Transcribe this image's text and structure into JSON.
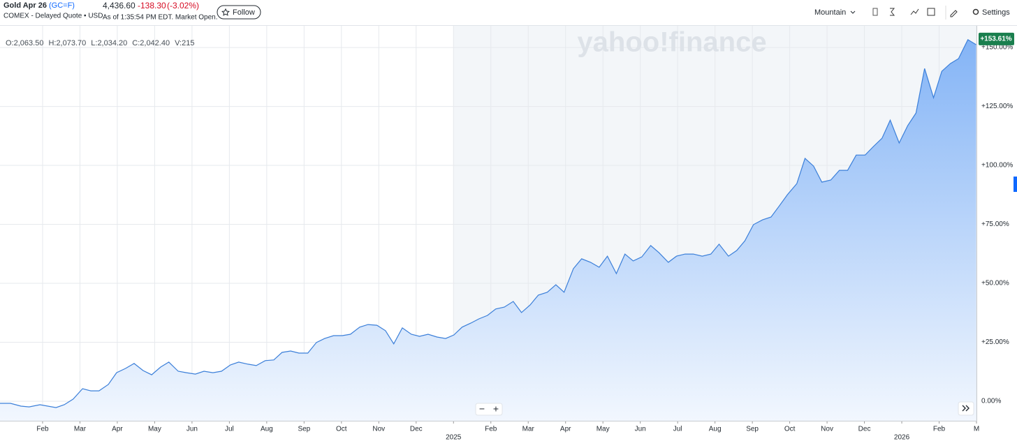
{
  "header": {
    "symbol_name": "Gold Apr 26",
    "symbol": "(GC=F)",
    "exchange": "COMEX - Delayed Quote • USD",
    "price": "4,436.60",
    "change": "-138.30",
    "change_pct": "(-3.02%)",
    "as_of": "As of 1:35:54 PM EDT. Market Open.",
    "follow": "Follow",
    "chart_style": "Mountain",
    "settings": "Settings"
  },
  "ohlc": [
    "O:2,063.50",
    "H:2,073.70",
    "L:2,034.20",
    "C:2,042.40",
    "V:215"
  ],
  "watermark": "yahoo!finance",
  "zoom": [
    "−",
    "+"
  ],
  "chart_data": {
    "type": "area",
    "color": "#3b7fd9",
    "x": [
      -0.14,
      0.14,
      0.42,
      0.64,
      0.93,
      1.36,
      1.58,
      1.82,
      2.07,
      2.29,
      2.51,
      2.76,
      2.98,
      3.22,
      3.45,
      3.69,
      3.92,
      4.16,
      4.38,
      4.63,
      4.85,
      5.09,
      5.32,
      5.56,
      5.79,
      6.03,
      6.25,
      6.5,
      6.72,
      6.96,
      7.19,
      7.41,
      7.64,
      7.86,
      8.1,
      8.33,
      8.55,
      8.79,
      9.02,
      9.24,
      9.49,
      9.71,
      9.95,
      10.18,
      10.4,
      10.63,
      10.87,
      11.09,
      11.32,
      11.56,
      11.79,
      12.01,
      12.23,
      12.46,
      12.68,
      12.91,
      13.13,
      13.36,
      13.6,
      13.82,
      14.05,
      14.27,
      14.51,
      14.74,
      14.96,
      15.21,
      15.43,
      15.67,
      15.9,
      16.12,
      16.36,
      16.59,
      16.81,
      17.04,
      17.28,
      17.5,
      17.75,
      17.97,
      18.2,
      18.42,
      18.66,
      18.89,
      19.11,
      19.36,
      19.58,
      19.8,
      20.03,
      20.27,
      20.5,
      20.72,
      20.94,
      21.19,
      21.41,
      21.64,
      21.86,
      22.1,
      22.33,
      22.55,
      22.78,
      23.02,
      23.24,
      23.47,
      23.69,
      23.93,
      24.16,
      24.38,
      24.61,
      24.85,
      25.07,
      25.3,
      25.52,
      25.77,
      25.99
    ],
    "values": [
      -0.9,
      -0.9,
      -2.1,
      -2.4,
      -1.5,
      -2.7,
      -1.5,
      0.9,
      5.3,
      4.4,
      4.4,
      7.1,
      12.1,
      13.9,
      16.0,
      13.0,
      11.2,
      14.5,
      16.6,
      12.7,
      12.1,
      11.5,
      12.7,
      12.1,
      12.7,
      15.4,
      16.6,
      15.7,
      15.1,
      17.2,
      17.5,
      20.7,
      21.3,
      20.4,
      20.4,
      24.9,
      26.6,
      27.8,
      27.8,
      28.4,
      31.4,
      32.5,
      32.2,
      29.9,
      24.3,
      31.1,
      28.4,
      27.5,
      28.4,
      27.2,
      26.6,
      28.1,
      31.4,
      33.1,
      34.9,
      36.4,
      39.1,
      39.9,
      42.3,
      37.6,
      40.8,
      45.0,
      46.2,
      49.4,
      46.2,
      56.2,
      60.4,
      58.9,
      56.8,
      61.5,
      54.1,
      62.4,
      59.5,
      61.2,
      66.0,
      63.0,
      58.9,
      61.5,
      62.4,
      62.4,
      61.5,
      62.4,
      66.6,
      61.5,
      63.9,
      68.0,
      74.9,
      76.9,
      78.1,
      82.8,
      87.6,
      92.3,
      103.0,
      99.7,
      92.9,
      93.8,
      97.9,
      97.9,
      104.4,
      104.4,
      108.0,
      111.5,
      119.2,
      109.5,
      116.9,
      122.2,
      141.1,
      128.7,
      139.9,
      143.2,
      145.3,
      153.3,
      151.2
    ],
    "xlim": [
      -0.14,
      26.0
    ],
    "ylim": [
      -8.3,
      159.2
    ],
    "xticks": [
      {
        "value": 1,
        "label": "Feb"
      },
      {
        "value": 2,
        "label": "Mar"
      },
      {
        "value": 3,
        "label": "Apr"
      },
      {
        "value": 4,
        "label": "May"
      },
      {
        "value": 5,
        "label": "Jun"
      },
      {
        "value": 6,
        "label": "Jul"
      },
      {
        "value": 7,
        "label": "Aug"
      },
      {
        "value": 8,
        "label": "Sep"
      },
      {
        "value": 9,
        "label": "Oct"
      },
      {
        "value": 10,
        "label": "Nov"
      },
      {
        "value": 11,
        "label": "Dec"
      },
      {
        "value": 13,
        "label": "Feb"
      },
      {
        "value": 14,
        "label": "Mar"
      },
      {
        "value": 15,
        "label": "Apr"
      },
      {
        "value": 16,
        "label": "May"
      },
      {
        "value": 17,
        "label": "Jun"
      },
      {
        "value": 18,
        "label": "Jul"
      },
      {
        "value": 19,
        "label": "Aug"
      },
      {
        "value": 20,
        "label": "Sep"
      },
      {
        "value": 21,
        "label": "Oct"
      },
      {
        "value": 22,
        "label": "Nov"
      },
      {
        "value": 23,
        "label": "Dec"
      },
      {
        "value": 25,
        "label": "Feb"
      },
      {
        "value": 26,
        "label": "M"
      }
    ],
    "year_ticks": [
      {
        "value": 12,
        "label": "2025"
      },
      {
        "value": 24,
        "label": "2026"
      }
    ],
    "shade_from": 12,
    "yticks": [
      {
        "value": 0,
        "label": "0.00%"
      },
      {
        "value": 25,
        "label": "+25.00%"
      },
      {
        "value": 50,
        "label": "+50.00%"
      },
      {
        "value": 75,
        "label": "+75.00%"
      },
      {
        "value": 100,
        "label": "+100.00%"
      },
      {
        "value": 125,
        "label": "+125.00%"
      },
      {
        "value": 150,
        "label": "+150.00%"
      }
    ],
    "last_label": {
      "value": 153.61,
      "label": "+153.61%"
    },
    "grid": true
  }
}
